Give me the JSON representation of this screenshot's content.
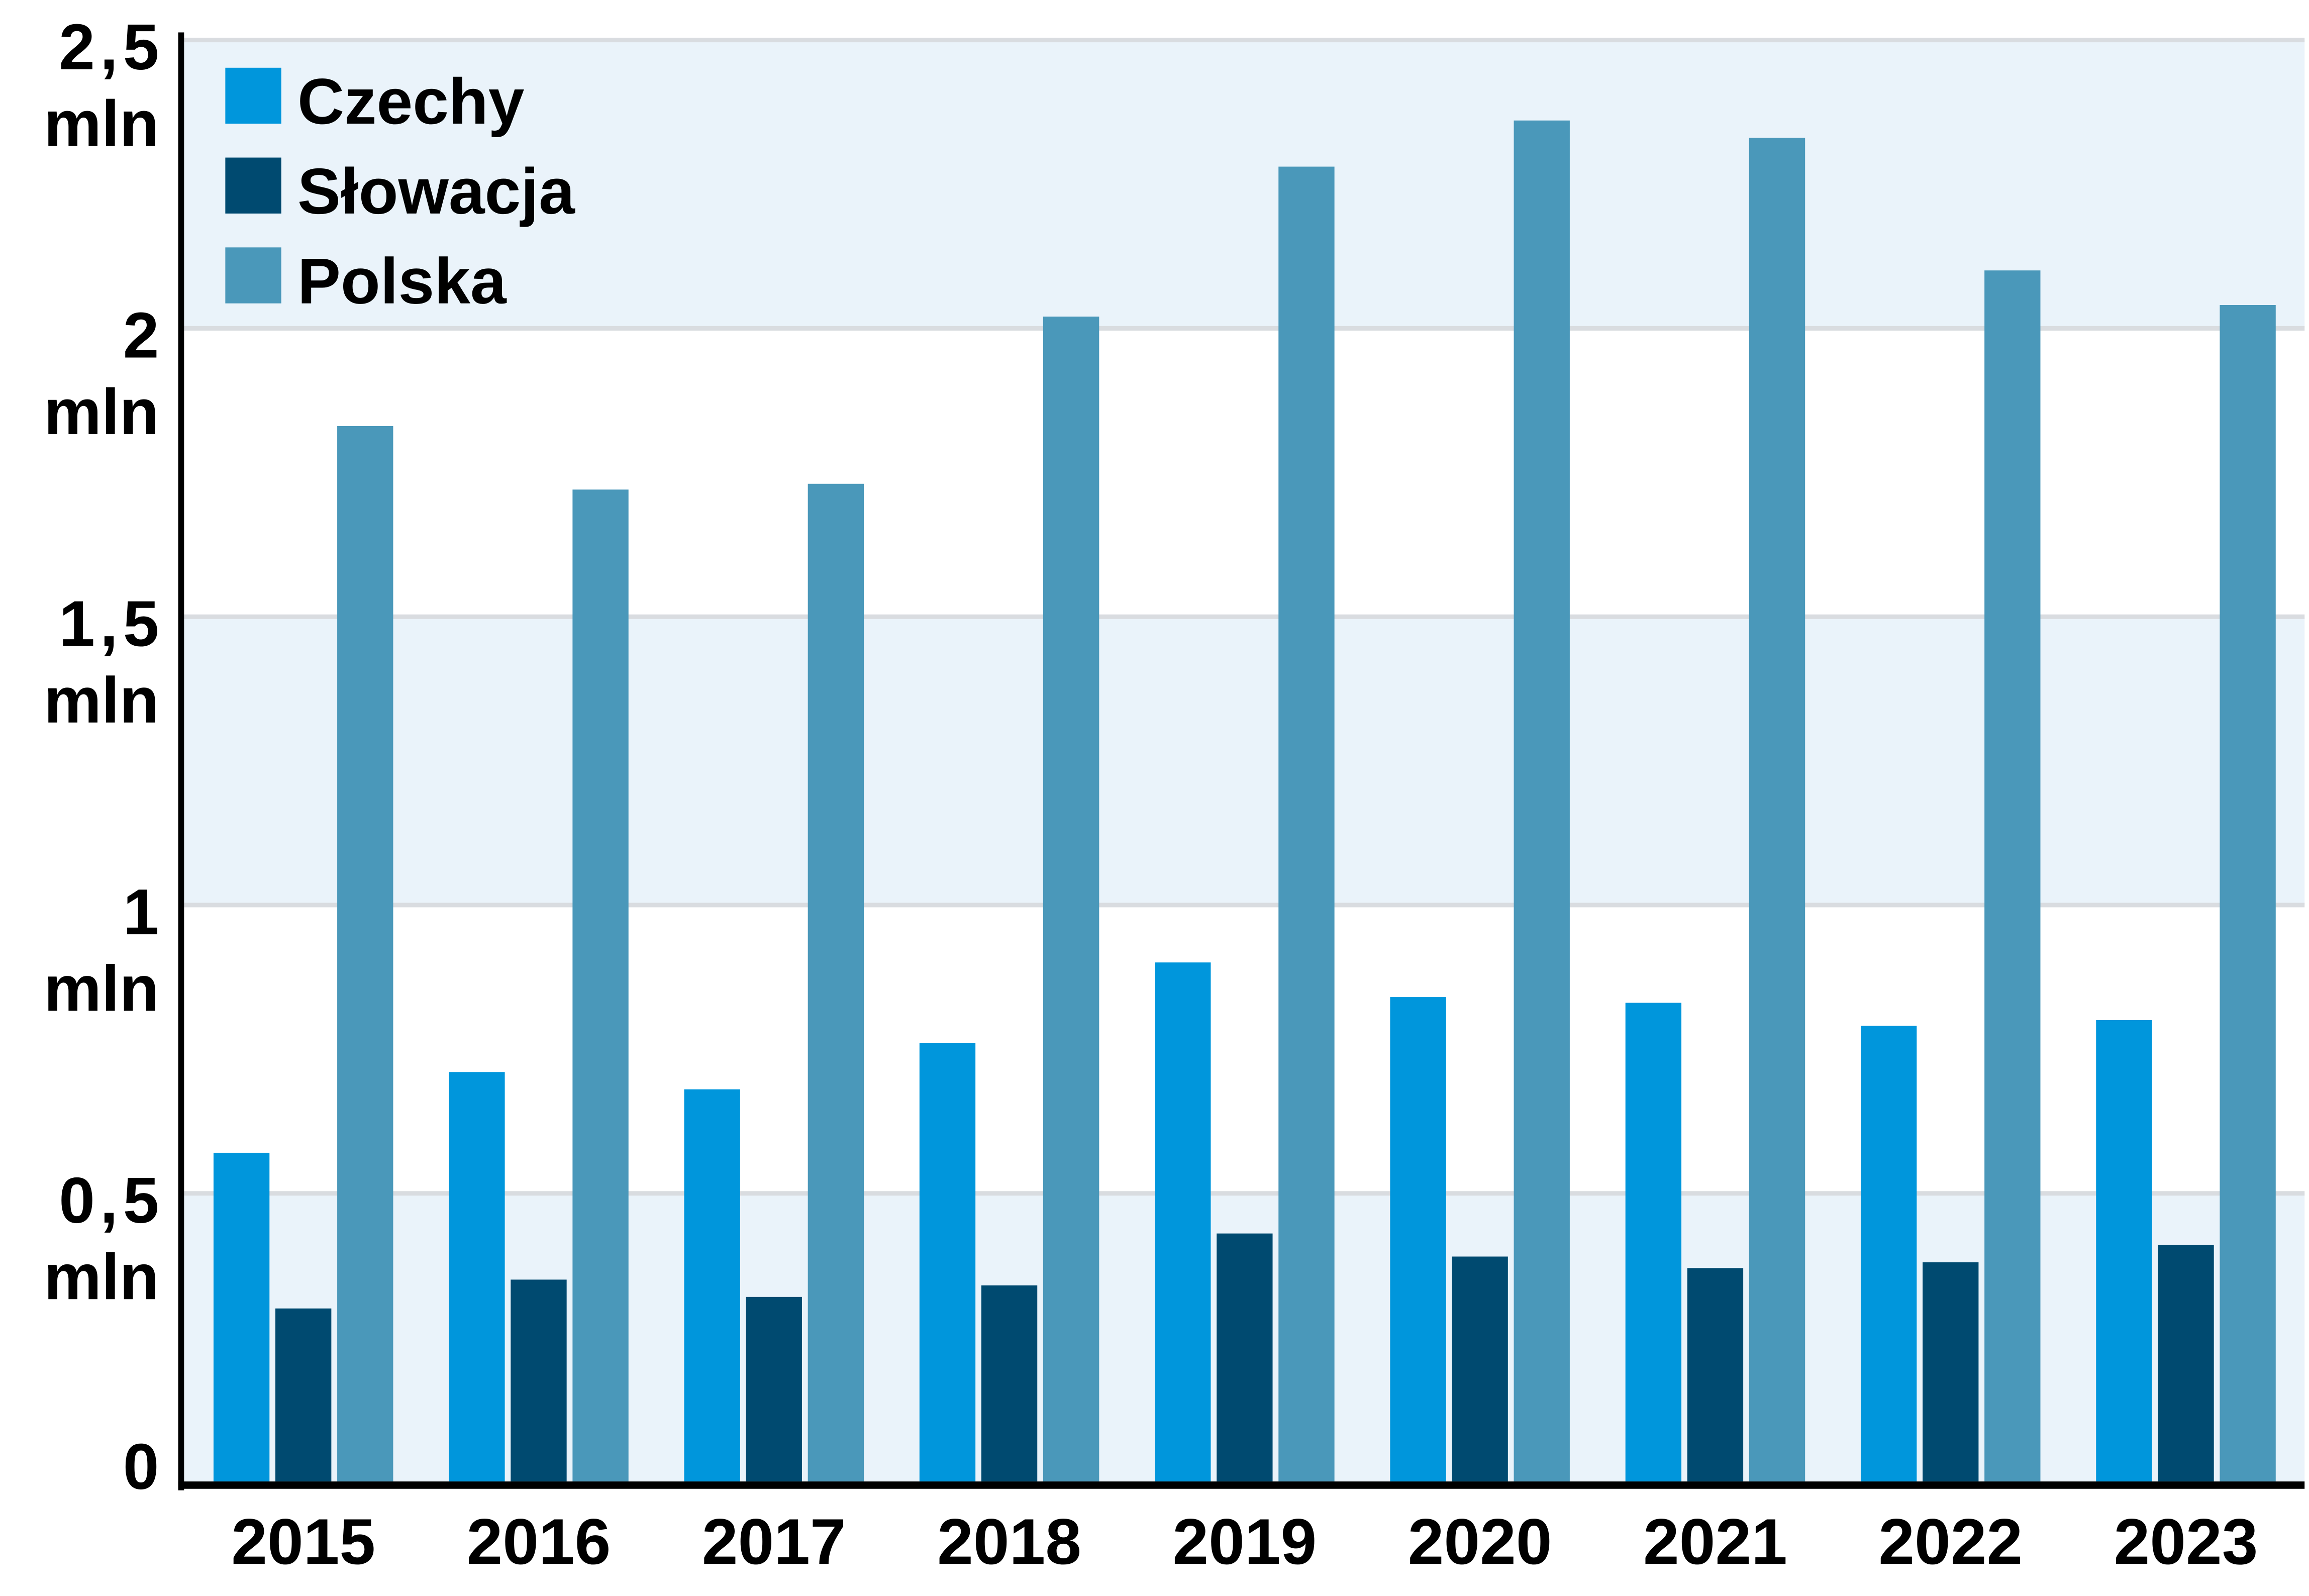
{
  "chart_data": {
    "type": "bar",
    "title": "",
    "xlabel": "",
    "ylabel": "",
    "categories": [
      "2015",
      "2016",
      "2017",
      "2018",
      "2019",
      "2020",
      "2021",
      "2022",
      "2023"
    ],
    "series": [
      {
        "name": "Czechy",
        "color": "#0096DC",
        "values": [
          0.57,
          0.71,
          0.68,
          0.76,
          0.9,
          0.84,
          0.83,
          0.79,
          0.8
        ]
      },
      {
        "name": "Słowacja",
        "color": "#004A70",
        "values": [
          0.3,
          0.35,
          0.32,
          0.34,
          0.43,
          0.39,
          0.37,
          0.38,
          0.41
        ]
      },
      {
        "name": "Polska",
        "color": "#4A98BA",
        "values": [
          1.83,
          1.72,
          1.73,
          2.02,
          2.28,
          2.36,
          2.33,
          2.1,
          2.04
        ]
      }
    ],
    "ylim": [
      0,
      2.5
    ],
    "yticks": [
      {
        "value": 0,
        "label": "0",
        "unit": ""
      },
      {
        "value": 0.5,
        "label": "0,5",
        "unit": "mln"
      },
      {
        "value": 1,
        "label": "1",
        "unit": "mln"
      },
      {
        "value": 1.5,
        "label": "1,5",
        "unit": "mln"
      },
      {
        "value": 2,
        "label": "2",
        "unit": "mln"
      },
      {
        "value": 2.5,
        "label": "2,5",
        "unit": "mln"
      }
    ],
    "grid": true,
    "legend_position": "top-left",
    "band_color": "#EAF3FA",
    "grid_color": "#D9DCE0"
  }
}
